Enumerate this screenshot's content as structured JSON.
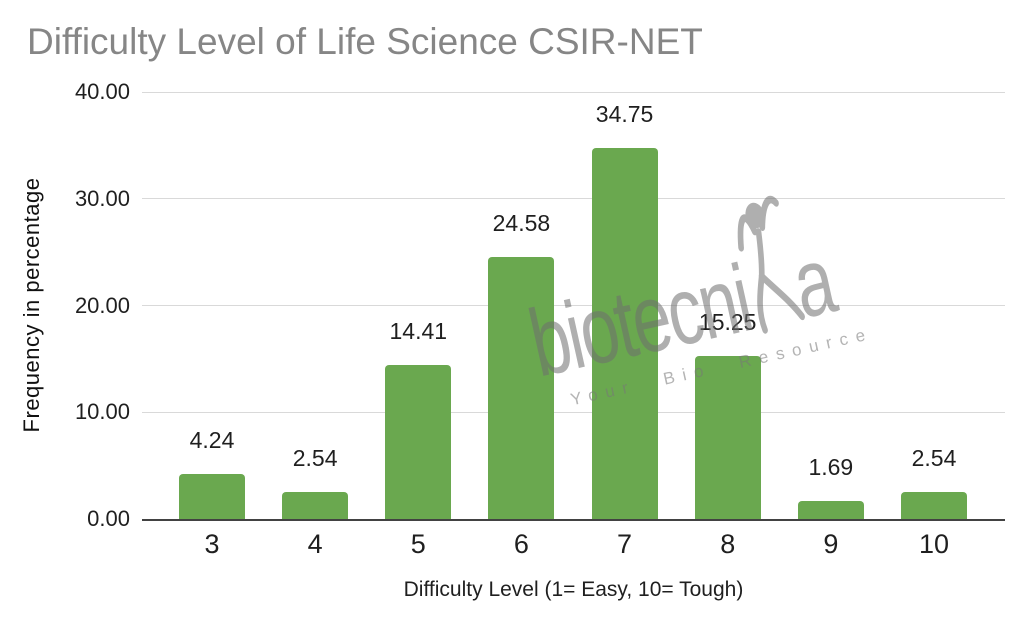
{
  "chart_data": {
    "type": "bar",
    "title": "Difficulty Level of Life Science CSIR-NET",
    "categories": [
      "3",
      "4",
      "5",
      "6",
      "7",
      "8",
      "9",
      "10"
    ],
    "values": [
      4.24,
      2.54,
      14.41,
      24.58,
      34.75,
      15.25,
      1.69,
      2.54
    ],
    "data_labels": [
      "4.24",
      "2.54",
      "14.41",
      "24.58",
      "34.75",
      "15.25",
      "1.69",
      "2.54"
    ],
    "xlabel": "Difficulty Level (1= Easy, 10= Tough)",
    "ylabel": "Frequency in percentage",
    "ylim": [
      0,
      40
    ],
    "yticks": [
      "40.00",
      "30.00",
      "20.00",
      "10.00",
      "0.00"
    ],
    "grid": true,
    "legend_position": "none",
    "colors": {
      "bar": "#6aa84f",
      "title_text": "#868686",
      "axis_label_text": "#1f1f1f",
      "gridline": "#d9d9d9",
      "axis_line": "#424242",
      "watermark": "#9e9e9e"
    }
  },
  "watermark": {
    "brand_prefix": "biotecni",
    "brand_suffix": "a",
    "brand_full": "biotecnika",
    "tagline": "Your Bio Resource"
  }
}
